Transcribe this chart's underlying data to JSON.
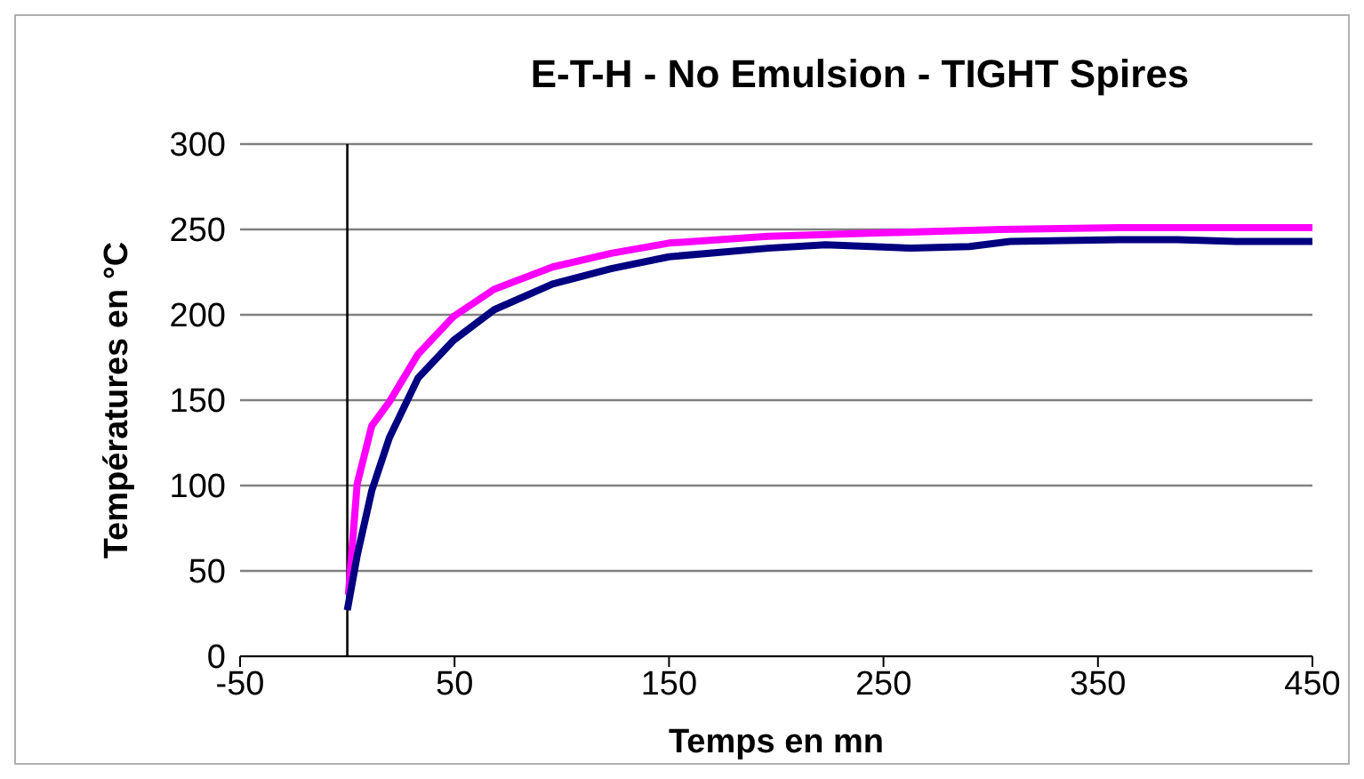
{
  "chart_data": {
    "type": "line",
    "title": "E-T-H - No Emulsion - TIGHT Spires",
    "xlabel": "Temps en mn",
    "ylabel": "Températures en °C",
    "xlim": [
      -50,
      450
    ],
    "xticks": [
      -50,
      50,
      150,
      250,
      350,
      450
    ],
    "ylim": [
      0,
      300
    ],
    "yticks": [
      0,
      50,
      100,
      150,
      200,
      250,
      300
    ],
    "grid": "y",
    "marker": "none",
    "line_style": "solid",
    "ref_lines": [
      {
        "axis": "x",
        "value": 0,
        "color": "#000000"
      }
    ],
    "series": [
      {
        "color": "#ff00ff",
        "x": [
          0.5,
          4.6,
          11.4,
          19.6,
          33,
          49.5,
          68.5,
          95.7,
          123,
          150,
          196,
          250,
          305,
          360,
          414,
          450
        ],
        "values": [
          36,
          101,
          135,
          149,
          177,
          199,
          215,
          228,
          236,
          242,
          246,
          248,
          250,
          251,
          251,
          251
        ]
      },
      {
        "color": "#000080",
        "x": [
          0,
          4.6,
          11.4,
          19.6,
          33,
          49.5,
          68.5,
          95.7,
          123,
          150,
          196,
          223,
          263,
          290,
          309,
          360,
          387,
          414,
          450
        ],
        "values": [
          27,
          59,
          97,
          128,
          163,
          185,
          203,
          218,
          227,
          234,
          239,
          241,
          239,
          240,
          243,
          244,
          244,
          243,
          243
        ]
      }
    ]
  }
}
